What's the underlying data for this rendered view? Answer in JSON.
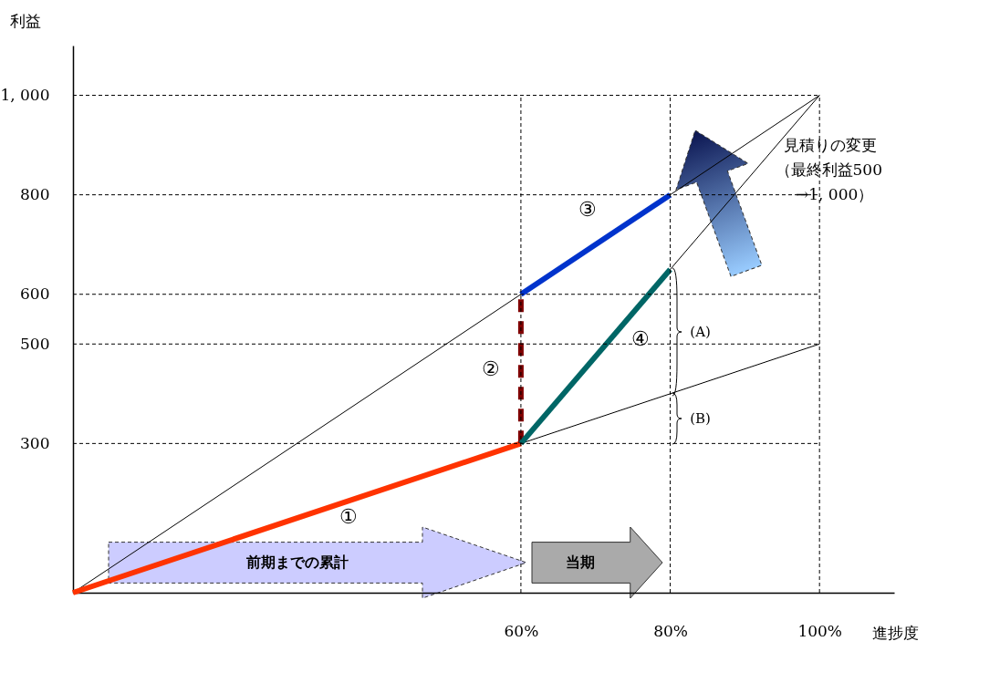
{
  "chart_data": {
    "type": "line",
    "xlabel": "進捗度",
    "ylabel": "利益",
    "xlim": [
      0,
      110
    ],
    "ylim": [
      0,
      1100
    ],
    "xticks": [
      {
        "value": 60,
        "label": "60%"
      },
      {
        "value": 80,
        "label": "80%"
      },
      {
        "value": 100,
        "label": "100%"
      }
    ],
    "yticks": [
      300,
      500,
      600,
      800,
      {
        "value": 1000,
        "label": "1, 000"
      }
    ],
    "series": [
      {
        "color": "#000000",
        "x": [
          0,
          100
        ],
        "values": [
          0,
          1000
        ]
      },
      {
        "color": "#000000",
        "x": [
          60,
          100
        ],
        "values": [
          300,
          500
        ]
      },
      {
        "color": "#000000",
        "x": [
          60,
          100
        ],
        "values": [
          300,
          1000
        ]
      },
      {
        "color": "#ff3300",
        "x": [
          0,
          60
        ],
        "values": [
          0,
          300
        ]
      },
      {
        "color": "#800000",
        "x": [
          60,
          60
        ],
        "values": [
          300,
          600
        ],
        "line_style": "dashed"
      },
      {
        "color": "#0033cc",
        "x": [
          60,
          80
        ],
        "values": [
          600,
          800
        ]
      },
      {
        "color": "#006666",
        "x": [
          60,
          80
        ],
        "values": [
          300,
          650
        ]
      }
    ],
    "ref_lines": [
      {
        "axis": "x",
        "value": 60,
        "line_style": "dashed"
      },
      {
        "axis": "x",
        "value": 80,
        "line_style": "dashed"
      },
      {
        "axis": "x",
        "value": 100,
        "line_style": "dashed"
      },
      {
        "axis": "y",
        "value": 300,
        "line_style": "dashed"
      },
      {
        "axis": "y",
        "value": 500,
        "line_style": "dashed"
      },
      {
        "axis": "y",
        "value": 600,
        "line_style": "dashed"
      },
      {
        "axis": "y",
        "value": 800,
        "line_style": "dashed"
      },
      {
        "axis": "y",
        "value": 1000,
        "line_style": "dashed"
      }
    ],
    "annotations": [
      "①",
      "②",
      "③",
      "④",
      "(A)",
      "(B)",
      "前期までの累計",
      "当期",
      "見積りの変更",
      "（最終利益500",
      "→1, 000）"
    ],
    "grid": false
  }
}
